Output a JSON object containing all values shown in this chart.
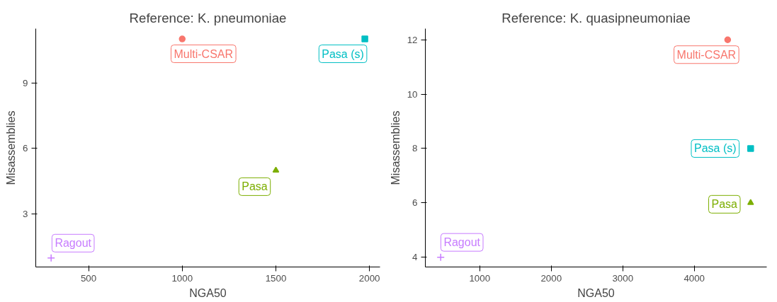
{
  "chart_data": [
    {
      "type": "scatter",
      "title": "Reference: K. pneumoniae",
      "xlabel": "NGA50",
      "ylabel": "Misassemblies",
      "xlim": [
        218,
        2056
      ],
      "xticks": [
        500,
        1000,
        1500,
        2000
      ],
      "ylim": [
        0.59,
        11.47
      ],
      "yticks": [
        3,
        6,
        9
      ],
      "grid": false,
      "legend": false,
      "series": [
        {
          "name": "Multi-CSAR",
          "color": "#f8766d",
          "marker": "circle",
          "x": [
            1000
          ],
          "values": [
            11
          ]
        },
        {
          "name": "Pasa (s)",
          "color": "#00bfc4",
          "marker": "square",
          "x": [
            1975
          ],
          "values": [
            11
          ]
        },
        {
          "name": "Pasa",
          "color": "#7cae00",
          "marker": "triangle",
          "x": [
            1500
          ],
          "values": [
            5
          ]
        },
        {
          "name": "Ragout",
          "color": "#c77cff",
          "marker": "cross",
          "x": [
            300
          ],
          "values": [
            1
          ]
        }
      ]
    },
    {
      "type": "scatter",
      "title": "Reference: K. quasipneumoniae",
      "xlabel": "NGA50",
      "ylabel": "Misassemblies",
      "xlim": [
        240,
        5013
      ],
      "xticks": [
        1000,
        2000,
        3000,
        4000
      ],
      "ylim": [
        3.64,
        12.41
      ],
      "yticks": [
        4,
        6,
        8,
        10,
        12
      ],
      "grid": false,
      "legend": false,
      "series": [
        {
          "name": "Multi-CSAR",
          "color": "#f8766d",
          "marker": "circle",
          "x": [
            4467
          ],
          "values": [
            12
          ]
        },
        {
          "name": "Pasa (s)",
          "color": "#00bfc4",
          "marker": "square",
          "x": [
            4788
          ],
          "values": [
            8
          ]
        },
        {
          "name": "Pasa",
          "color": "#7cae00",
          "marker": "triangle",
          "x": [
            4788
          ],
          "values": [
            6
          ]
        },
        {
          "name": "Ragout",
          "color": "#c77cff",
          "marker": "cross",
          "x": [
            455
          ],
          "values": [
            4
          ]
        }
      ]
    }
  ]
}
